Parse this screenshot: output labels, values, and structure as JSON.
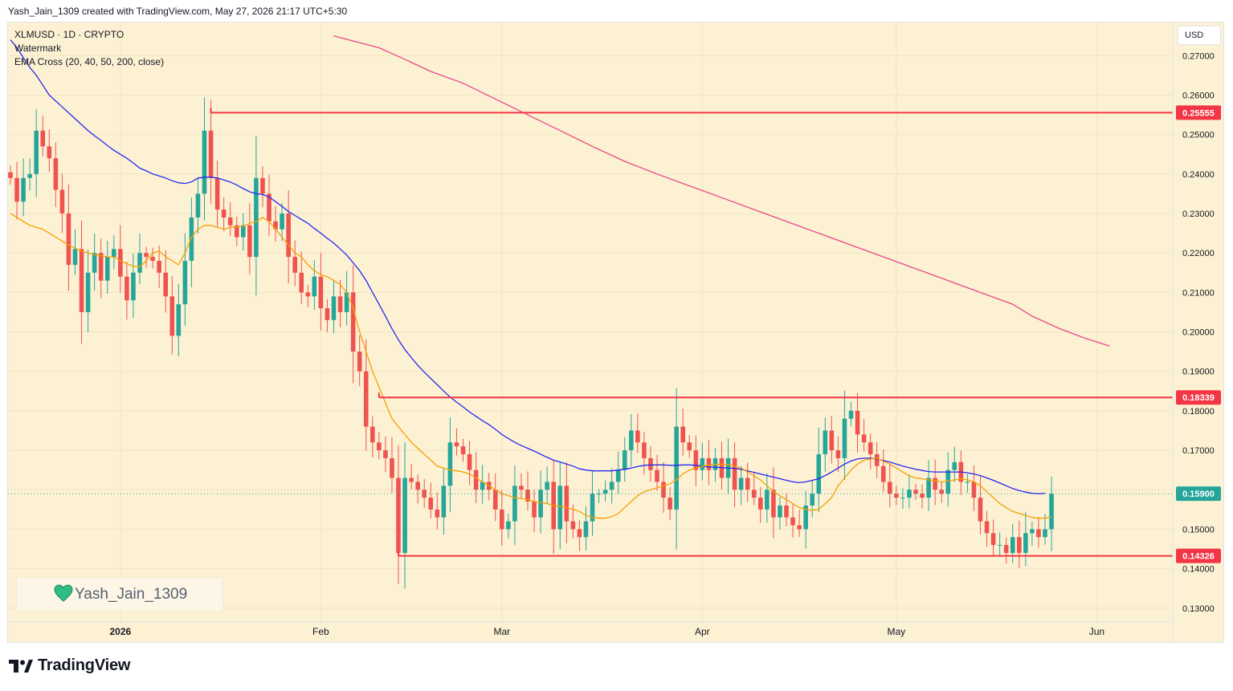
{
  "header": {
    "credit": "Yash_Jain_1309 created with TradingView.com, May 27, 2026 21:17 UTC+5:30"
  },
  "legend": {
    "symbol": "XLMUSD · 1D · CRYPTO",
    "watermark_label": "Watermark",
    "indicator": "EMA Cross (20, 40, 50, 200, close)"
  },
  "currency_button": "USD",
  "watermark": {
    "text": "Yash_Jain_1309",
    "icon": "green-heart-icon",
    "color": "#2ebd85"
  },
  "footer": {
    "logo_text": "TradingView",
    "logo_icon": "tradingview-logo-icon"
  },
  "colors": {
    "background": "#fdf1d3",
    "up": "#26a69a",
    "down": "#ef5350",
    "ema20": "#f5a000",
    "ema50": "#2528f0",
    "ema200": "#e84888",
    "level": "#f23645",
    "grid": "#f1e4c4"
  },
  "chart_data": {
    "type": "candlestick",
    "symbol": "XLMUSD",
    "interval": "1D",
    "currency": "USD",
    "ylim": [
      0.1265,
      0.2784
    ],
    "y_ticks": [
      "0.27000",
      "0.26000",
      "0.25000",
      "0.24000",
      "0.23000",
      "0.22000",
      "0.21000",
      "0.20000",
      "0.19000",
      "0.18000",
      "0.17000",
      "0.16000",
      "0.15000",
      "0.14000",
      "0.13000"
    ],
    "x_ticks": [
      {
        "label": "2026",
        "day": 17
      },
      {
        "label": "Feb",
        "day": 48
      },
      {
        "label": "Mar",
        "day": 76
      },
      {
        "label": "Apr",
        "day": 107
      },
      {
        "label": "May",
        "day": 137
      },
      {
        "label": "Jun",
        "day": 168
      }
    ],
    "start_date": "2025-12-15",
    "horizontal_levels": [
      {
        "value": 0.25555,
        "label": "0.25555",
        "from_day": 31
      },
      {
        "value": 0.18339,
        "label": "0.18339",
        "from_day": 57
      },
      {
        "value": 0.14326,
        "label": "0.14326",
        "from_day": 60
      }
    ],
    "last_price": {
      "value": 0.159,
      "label": "0.15900"
    },
    "close": [
      0.239,
      0.233,
      0.239,
      0.24,
      0.251,
      0.247,
      0.244,
      0.236,
      0.23,
      0.217,
      0.221,
      0.205,
      0.215,
      0.22,
      0.213,
      0.219,
      0.221,
      0.214,
      0.208,
      0.215,
      0.22,
      0.219,
      0.218,
      0.215,
      0.209,
      0.199,
      0.207,
      0.218,
      0.229,
      0.235,
      0.251,
      0.239,
      0.231,
      0.229,
      0.227,
      0.224,
      0.227,
      0.219,
      0.239,
      0.235,
      0.228,
      0.226,
      0.23,
      0.219,
      0.215,
      0.21,
      0.209,
      0.214,
      0.206,
      0.203,
      0.209,
      0.205,
      0.21,
      0.195,
      0.19,
      0.176,
      0.172,
      0.17,
      0.168,
      0.163,
      0.144,
      0.163,
      0.162,
      0.16,
      0.158,
      0.155,
      0.153,
      0.161,
      0.172,
      0.171,
      0.169,
      0.165,
      0.16,
      0.162,
      0.16,
      0.155,
      0.15,
      0.152,
      0.161,
      0.16,
      0.157,
      0.153,
      0.16,
      0.162,
      0.15,
      0.161,
      0.152,
      0.15,
      0.148,
      0.152,
      0.159,
      0.159,
      0.16,
      0.162,
      0.165,
      0.17,
      0.175,
      0.172,
      0.168,
      0.165,
      0.162,
      0.158,
      0.155,
      0.176,
      0.172,
      0.17,
      0.165,
      0.168,
      0.165,
      0.168,
      0.163,
      0.168,
      0.16,
      0.163,
      0.16,
      0.158,
      0.155,
      0.16,
      0.153,
      0.156,
      0.153,
      0.151,
      0.15,
      0.156,
      0.159,
      0.169,
      0.175,
      0.17,
      0.168,
      0.178,
      0.18,
      0.174,
      0.172,
      0.169,
      0.166,
      0.162,
      0.159,
      0.158,
      0.158,
      0.16,
      0.159,
      0.158,
      0.163,
      0.16,
      0.159,
      0.165,
      0.167,
      0.162,
      0.162,
      0.158,
      0.152,
      0.149,
      0.146,
      0.146,
      0.144,
      0.148,
      0.144,
      0.149,
      0.15,
      0.148,
      0.15,
      0.159
    ],
    "ema20": [
      0.23,
      0.229,
      0.228,
      0.227,
      0.2265,
      0.226,
      0.225,
      0.224,
      0.223,
      0.222,
      0.2212,
      0.2205,
      0.22,
      0.2196,
      0.2193,
      0.219,
      0.219,
      0.218,
      0.2173,
      0.2166,
      0.2165,
      0.218,
      0.22,
      0.2205,
      0.219,
      0.218,
      0.217,
      0.22,
      0.224,
      0.226,
      0.227,
      0.227,
      0.2265,
      0.226,
      0.2265,
      0.2266,
      0.2268,
      0.2275,
      0.228,
      0.229,
      0.228,
      0.226,
      0.224,
      0.222,
      0.22,
      0.219,
      0.217,
      0.2155,
      0.2145,
      0.214,
      0.213,
      0.212,
      0.21,
      0.206,
      0.2,
      0.195,
      0.19,
      0.186,
      0.182,
      0.178,
      0.176,
      0.174,
      0.172,
      0.1705,
      0.169,
      0.1675,
      0.166,
      0.1655,
      0.165,
      0.1648,
      0.1645,
      0.164,
      0.163,
      0.162,
      0.161,
      0.16,
      0.159,
      0.1585,
      0.158,
      0.1578,
      0.1575,
      0.157,
      0.1568,
      0.1565,
      0.156,
      0.1558,
      0.1555,
      0.155,
      0.1545,
      0.1535,
      0.153,
      0.1528,
      0.1528,
      0.1532,
      0.154,
      0.1555,
      0.157,
      0.1585,
      0.1595,
      0.16,
      0.1605,
      0.161,
      0.1615,
      0.1625,
      0.164,
      0.165,
      0.1655,
      0.166,
      0.1662,
      0.1664,
      0.1665,
      0.1664,
      0.166,
      0.1655,
      0.1645,
      0.1635,
      0.1625,
      0.161,
      0.1595,
      0.1585,
      0.1575,
      0.1565,
      0.1555,
      0.155,
      0.1548,
      0.155,
      0.1565,
      0.158,
      0.161,
      0.163,
      0.165,
      0.1665,
      0.1675,
      0.1678,
      0.168,
      0.1672,
      0.1665,
      0.1655,
      0.1645,
      0.1635,
      0.163,
      0.1628,
      0.1625,
      0.1623,
      0.162,
      0.1622,
      0.1625,
      0.1628,
      0.1625,
      0.162,
      0.161,
      0.1595,
      0.158,
      0.1565,
      0.1555,
      0.1545,
      0.154,
      0.1535,
      0.153,
      0.1528,
      0.1528,
      0.1532
    ],
    "ema50": [
      0.274,
      0.272,
      0.2695,
      0.267,
      0.265,
      0.2625,
      0.26,
      0.2585,
      0.257,
      0.2555,
      0.254,
      0.2525,
      0.251,
      0.2497,
      0.2485,
      0.2472,
      0.246,
      0.245,
      0.244,
      0.2428,
      0.2415,
      0.2408,
      0.24,
      0.2395,
      0.239,
      0.2383,
      0.2378,
      0.2376,
      0.238,
      0.239,
      0.2392,
      0.2392,
      0.239,
      0.2385,
      0.238,
      0.2372,
      0.2363,
      0.2355,
      0.235,
      0.2348,
      0.2342,
      0.233,
      0.2318,
      0.2305,
      0.2295,
      0.2285,
      0.2275,
      0.2262,
      0.225,
      0.2237,
      0.2225,
      0.221,
      0.2195,
      0.2175,
      0.2155,
      0.213,
      0.21,
      0.207,
      0.204,
      0.2008,
      0.198,
      0.1955,
      0.1935,
      0.1915,
      0.1898,
      0.1882,
      0.1866,
      0.185,
      0.1835,
      0.1822,
      0.181,
      0.1797,
      0.1786,
      0.1775,
      0.1765,
      0.1753,
      0.174,
      0.173,
      0.172,
      0.1712,
      0.1705,
      0.1698,
      0.169,
      0.1682,
      0.1675,
      0.167,
      0.1665,
      0.166,
      0.1653,
      0.165,
      0.1648,
      0.1648,
      0.1648,
      0.1648,
      0.165,
      0.1652,
      0.1655,
      0.1659,
      0.1662,
      0.1663,
      0.1663,
      0.1663,
      0.1662,
      0.1662,
      0.1663,
      0.1663,
      0.1662,
      0.166,
      0.1658,
      0.1657,
      0.1656,
      0.1655,
      0.1654,
      0.1652,
      0.1648,
      0.1644,
      0.164,
      0.1636,
      0.1632,
      0.1628,
      0.1624,
      0.162,
      0.1618,
      0.162,
      0.1624,
      0.1628,
      0.1636,
      0.1645,
      0.1655,
      0.1665,
      0.1673,
      0.1678,
      0.168,
      0.168,
      0.1678,
      0.1674,
      0.167,
      0.1665,
      0.166,
      0.1656,
      0.1652,
      0.1649,
      0.1646,
      0.1645,
      0.1645,
      0.1645,
      0.1645,
      0.1645,
      0.1643,
      0.164,
      0.1636,
      0.163,
      0.1624,
      0.1617,
      0.161,
      0.1603,
      0.1598,
      0.1594,
      0.1591,
      0.159,
      0.1591
    ],
    "ema200": [
      null,
      null,
      null,
      null,
      null,
      null,
      null,
      null,
      null,
      null,
      null,
      null,
      null,
      null,
      null,
      null,
      null,
      null,
      null,
      null,
      null,
      null,
      null,
      null,
      null,
      null,
      null,
      null,
      null,
      null,
      null,
      null,
      null,
      null,
      null,
      null,
      null,
      null,
      null,
      null,
      null,
      null,
      null,
      null,
      null,
      null,
      null,
      null,
      null,
      null,
      null,
      null,
      null,
      null,
      null,
      null,
      null,
      null,
      null,
      null,
      null,
      null,
      null,
      null,
      null,
      null,
      null,
      null,
      null,
      null,
      null,
      null,
      null,
      null,
      null,
      null,
      null,
      null,
      null,
      null,
      null,
      null,
      null,
      null,
      null,
      null,
      null,
      null,
      null,
      null,
      null,
      null,
      null,
      null,
      null,
      null,
      null,
      null,
      null,
      null,
      null,
      null,
      null,
      null,
      null,
      null,
      null,
      null,
      null,
      null,
      null,
      null,
      null,
      null,
      null,
      null,
      null,
      null,
      null,
      null,
      null,
      null,
      null,
      null,
      null,
      null,
      null,
      null,
      null,
      null,
      null,
      null,
      null,
      null,
      null,
      null,
      null,
      null,
      null,
      null,
      null,
      null,
      null,
      null,
      null,
      null,
      null,
      null,
      null,
      null,
      null,
      null,
      null,
      null,
      null,
      null,
      null,
      null,
      null,
      null
    ],
    "ema200_points": [
      [
        50,
        0.275
      ],
      [
        57,
        0.272
      ],
      [
        60,
        0.2698
      ],
      [
        65,
        0.266
      ],
      [
        70,
        0.263
      ],
      [
        75,
        0.259
      ],
      [
        80,
        0.255
      ],
      [
        85,
        0.251
      ],
      [
        90,
        0.247
      ],
      [
        95,
        0.2432
      ],
      [
        100,
        0.24
      ],
      [
        105,
        0.237
      ],
      [
        110,
        0.234
      ],
      [
        115,
        0.231
      ],
      [
        120,
        0.228
      ],
      [
        125,
        0.225
      ],
      [
        130,
        0.222
      ],
      [
        135,
        0.219
      ],
      [
        140,
        0.216
      ],
      [
        145,
        0.213
      ],
      [
        150,
        0.21
      ],
      [
        155,
        0.207
      ],
      [
        158,
        0.204
      ],
      [
        162,
        0.201
      ],
      [
        166,
        0.1985
      ],
      [
        170,
        0.1964
      ]
    ]
  }
}
